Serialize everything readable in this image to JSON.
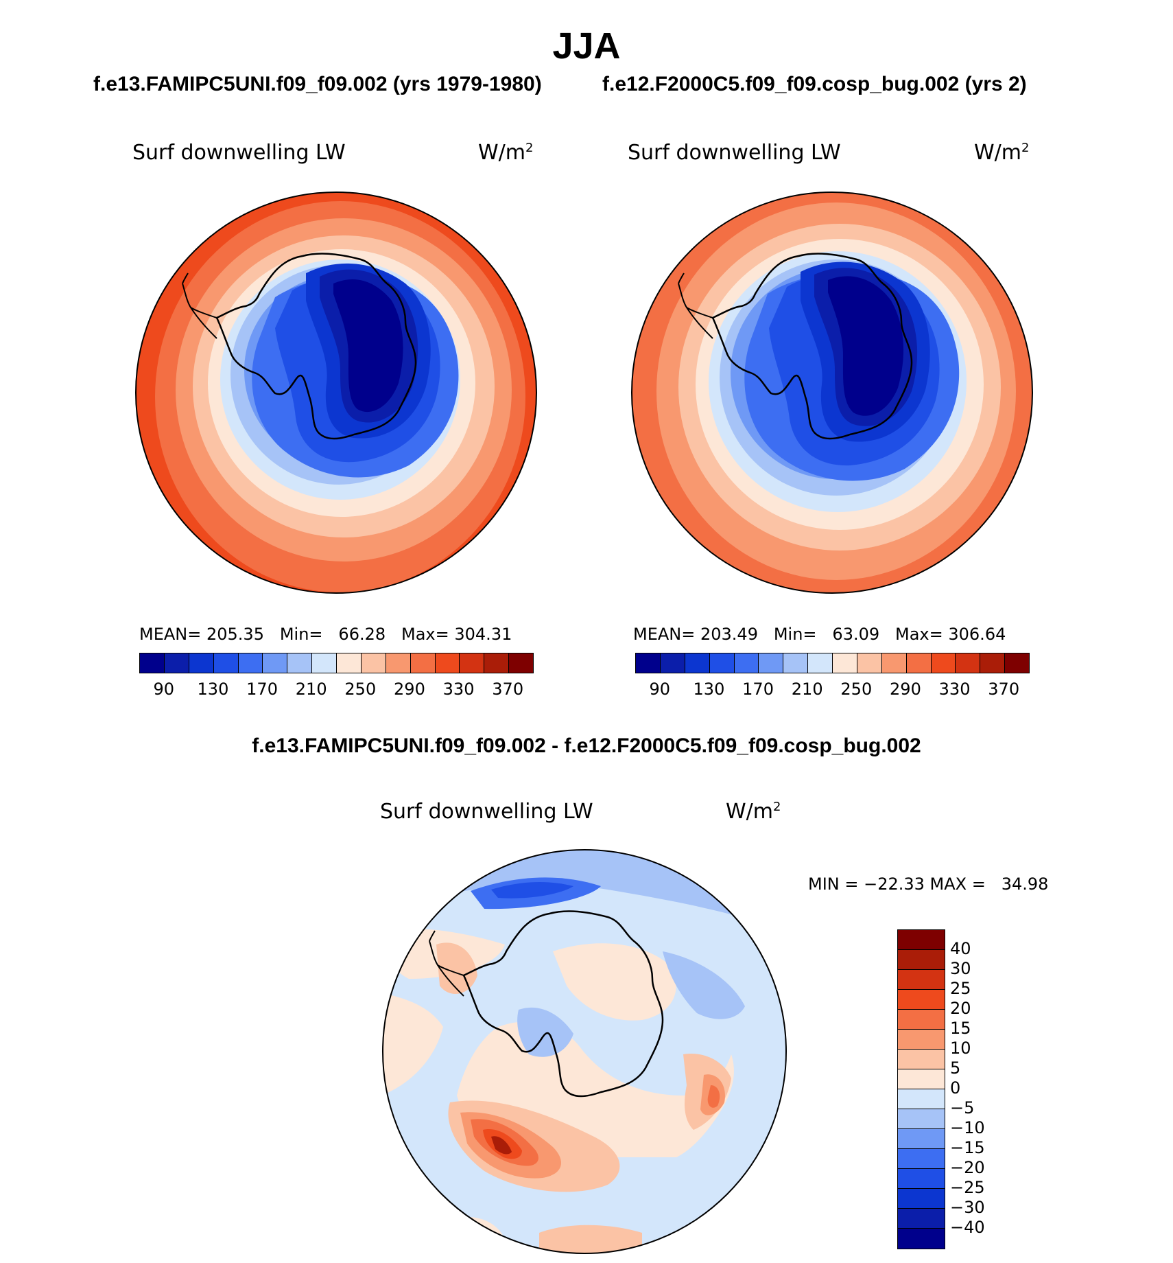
{
  "season": "JJA",
  "panel_a_title": "f.e13.FAMIPC5UNI.f09_f09.002 (yrs 1979-1980)",
  "panel_b_title": "f.e12.F2000C5.f09_f09.cosp_bug.002 (yrs 2)",
  "diff_title": "f.e13.FAMIPC5UNI.f09_f09.002 - f.e12.F2000C5.f09_f09.cosp_bug.002",
  "variable": "Surf downwelling LW",
  "unit_base": "W/m",
  "unit_exp": "2",
  "panel_a_stats": "MEAN= 205.35   Min=   66.28   Max= 304.31",
  "panel_b_stats": "MEAN= 203.49   Min=   63.09   Max= 306.64",
  "diff_stats": "MIN = −22.33 MAX =   34.98",
  "abs_colorbar": {
    "tick_labels": [
      "90",
      "130",
      "170",
      "210",
      "250",
      "290",
      "330",
      "370"
    ],
    "colors": [
      "#00008c",
      "#0b1eaa",
      "#0c36d0",
      "#1f4fe6",
      "#3d6ef2",
      "#6f99f5",
      "#a6c3f7",
      "#d3e6fb",
      "#fde7d7",
      "#fbc3a5",
      "#f8986f",
      "#f36f44",
      "#ee4a1d",
      "#d33312",
      "#aa1d08",
      "#7e0000"
    ]
  },
  "diff_colorbar": {
    "tick_labels": [
      "40",
      "30",
      "25",
      "20",
      "15",
      "10",
      "5",
      "0",
      "−5",
      "−10",
      "−15",
      "−20",
      "−25",
      "−30",
      "−40"
    ],
    "colors": [
      "#7e0000",
      "#aa1d08",
      "#d33312",
      "#ee4a1d",
      "#f36f44",
      "#f8986f",
      "#fbc3a5",
      "#fde7d7",
      "#d3e6fb",
      "#a6c3f7",
      "#6f99f5",
      "#3d6ef2",
      "#1f4fe6",
      "#0c36d0",
      "#0b1eaa",
      "#00008c"
    ]
  }
}
